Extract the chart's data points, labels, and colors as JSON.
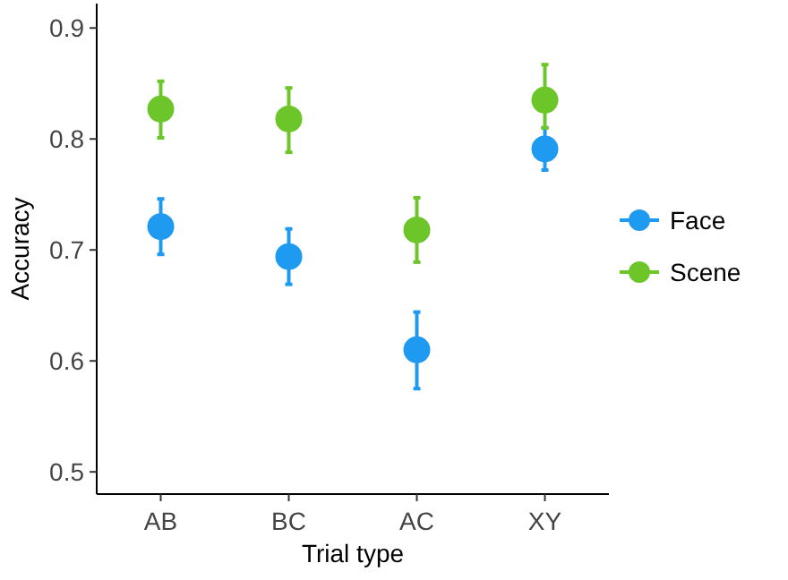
{
  "chart_data": {
    "type": "scatter",
    "xlabel": "Trial type",
    "ylabel": "Accuracy",
    "categories": [
      "AB",
      "BC",
      "AC",
      "XY"
    ],
    "ylim": [
      0.48,
      0.922
    ],
    "yticks": [
      0.5,
      0.6,
      0.7,
      0.8,
      0.9
    ],
    "grid": false,
    "legend": "right",
    "marker": "circle",
    "series": [
      {
        "name": "Face",
        "color": "#1e9bf0",
        "values": [
          0.721,
          0.694,
          0.61,
          0.791
        ],
        "errors": [
          [
            0.696,
            0.746
          ],
          [
            0.669,
            0.719
          ],
          [
            0.575,
            0.644
          ],
          [
            0.772,
            0.81
          ]
        ]
      },
      {
        "name": "Scene",
        "color": "#6cc62a",
        "values": [
          0.827,
          0.818,
          0.718,
          0.835
        ],
        "errors": [
          [
            0.801,
            0.852
          ],
          [
            0.788,
            0.846
          ],
          [
            0.689,
            0.747
          ],
          [
            0.81,
            0.867
          ]
        ]
      }
    ]
  }
}
